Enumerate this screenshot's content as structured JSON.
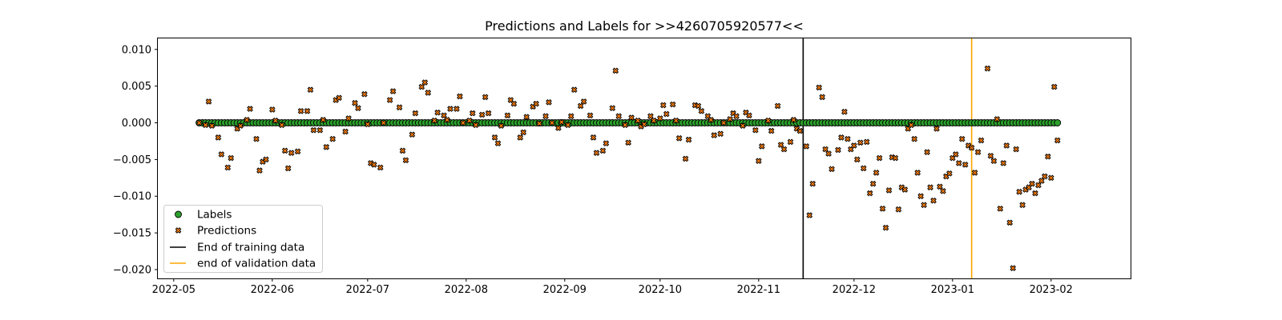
{
  "chart_data": {
    "type": "scatter",
    "title": "Predictions and Labels for >>4260705920577<<",
    "xlabel": "",
    "ylabel": "",
    "x_ticks": [
      "2022-05",
      "2022-06",
      "2022-07",
      "2022-08",
      "2022-09",
      "2022-10",
      "2022-11",
      "2022-12",
      "2023-01",
      "2023-02"
    ],
    "y_ticks": [
      "0.010",
      "0.005",
      "0.000",
      "−0.005",
      "−0.010",
      "−0.015",
      "−0.020"
    ],
    "y_tick_values": [
      0.01,
      0.005,
      0.0,
      -0.005,
      -0.01,
      -0.015,
      -0.02
    ],
    "xlim": [
      "2022-04-26",
      "2023-02-26"
    ],
    "ylim": [
      -0.0212,
      0.0115
    ],
    "grid": false,
    "legend_position": "lower-left",
    "date_range": {
      "start": "2022-05-09",
      "end": "2023-02-03"
    },
    "markers": [
      {
        "name": "End of training data",
        "date": "2022-11-15",
        "color": "#000000"
      },
      {
        "name": "end of validation data",
        "date": "2023-01-07",
        "color": "#ffa500"
      }
    ],
    "series": [
      {
        "name": "Labels",
        "marker": "circle",
        "color": "#2ca02c",
        "values_note": "one point per day from start to end, all at 0.000",
        "value": 0.0
      },
      {
        "name": "Predictions",
        "marker": "x",
        "color": "#ff7f0e",
        "points": [
          [
            "2022-05-09",
            0.0
          ],
          [
            "2022-05-11",
            -0.0003
          ],
          [
            "2022-05-12",
            0.0029
          ],
          [
            "2022-05-13",
            -0.0004
          ],
          [
            "2022-05-15",
            -0.002
          ],
          [
            "2022-05-16",
            -0.0043
          ],
          [
            "2022-05-18",
            -0.0061
          ],
          [
            "2022-05-19",
            -0.0048
          ],
          [
            "2022-05-21",
            -0.0008
          ],
          [
            "2022-05-22",
            -0.0004
          ],
          [
            "2022-05-24",
            0.0004
          ],
          [
            "2022-05-25",
            0.0019
          ],
          [
            "2022-05-27",
            -0.0022
          ],
          [
            "2022-05-28",
            -0.0065
          ],
          [
            "2022-05-29",
            -0.0053
          ],
          [
            "2022-05-30",
            -0.005
          ],
          [
            "2022-06-01",
            0.0018
          ],
          [
            "2022-06-02",
            0.0003
          ],
          [
            "2022-06-04",
            -0.0003
          ],
          [
            "2022-06-05",
            -0.0038
          ],
          [
            "2022-06-06",
            -0.0062
          ],
          [
            "2022-06-07",
            -0.0041
          ],
          [
            "2022-06-09",
            -0.0039
          ],
          [
            "2022-06-10",
            0.0016
          ],
          [
            "2022-06-12",
            0.0016
          ],
          [
            "2022-06-13",
            0.0045
          ],
          [
            "2022-06-14",
            -0.001
          ],
          [
            "2022-06-16",
            -0.001
          ],
          [
            "2022-06-17",
            0.0004
          ],
          [
            "2022-06-18",
            -0.0033
          ],
          [
            "2022-06-20",
            -0.0022
          ],
          [
            "2022-06-21",
            0.0031
          ],
          [
            "2022-06-22",
            0.0034
          ],
          [
            "2022-06-24",
            -0.0012
          ],
          [
            "2022-06-25",
            0.0006
          ],
          [
            "2022-06-27",
            0.0027
          ],
          [
            "2022-06-28",
            0.002
          ],
          [
            "2022-06-30",
            0.0039
          ],
          [
            "2022-07-01",
            -0.0002
          ],
          [
            "2022-07-02",
            -0.0055
          ],
          [
            "2022-07-03",
            -0.0057
          ],
          [
            "2022-07-05",
            -0.0061
          ],
          [
            "2022-07-06",
            0.0
          ],
          [
            "2022-07-08",
            0.0031
          ],
          [
            "2022-07-09",
            0.0043
          ],
          [
            "2022-07-11",
            0.0021
          ],
          [
            "2022-07-12",
            -0.0038
          ],
          [
            "2022-07-13",
            -0.0051
          ],
          [
            "2022-07-15",
            -0.0016
          ],
          [
            "2022-07-16",
            0.0013
          ],
          [
            "2022-07-18",
            0.0049
          ],
          [
            "2022-07-19",
            0.0055
          ],
          [
            "2022-07-20",
            0.0041
          ],
          [
            "2022-07-22",
            0.0003
          ],
          [
            "2022-07-23",
            0.0014
          ],
          [
            "2022-07-25",
            0.001
          ],
          [
            "2022-07-26",
            0.0004
          ],
          [
            "2022-07-27",
            0.0019
          ],
          [
            "2022-07-29",
            0.0019
          ],
          [
            "2022-07-30",
            0.0036
          ],
          [
            "2022-07-31",
            0.0
          ],
          [
            "2022-08-02",
            0.0003
          ],
          [
            "2022-08-03",
            0.0013
          ],
          [
            "2022-08-04",
            -0.0003
          ],
          [
            "2022-08-06",
            0.0011
          ],
          [
            "2022-08-07",
            0.0035
          ],
          [
            "2022-08-08",
            0.0013
          ],
          [
            "2022-08-10",
            -0.002
          ],
          [
            "2022-08-11",
            -0.0028
          ],
          [
            "2022-08-12",
            -0.0004
          ],
          [
            "2022-08-14",
            0.001
          ],
          [
            "2022-08-15",
            0.0031
          ],
          [
            "2022-08-16",
            0.0026
          ],
          [
            "2022-08-18",
            -0.002
          ],
          [
            "2022-08-19",
            -0.0013
          ],
          [
            "2022-08-20",
            0.0008
          ],
          [
            "2022-08-22",
            0.0022
          ],
          [
            "2022-08-23",
            0.0026
          ],
          [
            "2022-08-24",
            -0.0001
          ],
          [
            "2022-08-26",
            0.0009
          ],
          [
            "2022-08-27",
            0.0028
          ],
          [
            "2022-08-28",
            0.0
          ],
          [
            "2022-08-30",
            -0.0007
          ],
          [
            "2022-08-31",
            0.0001
          ],
          [
            "2022-09-02",
            -0.0003
          ],
          [
            "2022-09-03",
            0.0009
          ],
          [
            "2022-09-04",
            0.0045
          ],
          [
            "2022-09-06",
            0.0023
          ],
          [
            "2022-09-07",
            0.0029
          ],
          [
            "2022-09-09",
            0.001
          ],
          [
            "2022-09-10",
            -0.002
          ],
          [
            "2022-09-11",
            -0.0041
          ],
          [
            "2022-09-13",
            -0.0038
          ],
          [
            "2022-09-14",
            -0.0028
          ],
          [
            "2022-09-16",
            0.002
          ],
          [
            "2022-09-17",
            0.0071
          ],
          [
            "2022-09-18",
            0.0009
          ],
          [
            "2022-09-20",
            -0.0003
          ],
          [
            "2022-09-21",
            -0.0027
          ],
          [
            "2022-09-22",
            0.0007
          ],
          [
            "2022-09-24",
            0.0003
          ],
          [
            "2022-09-25",
            -0.0005
          ],
          [
            "2022-09-26",
            -0.0002
          ],
          [
            "2022-09-28",
            0.0009
          ],
          [
            "2022-09-29",
            0.0003
          ],
          [
            "2022-10-01",
            0.0006
          ],
          [
            "2022-10-02",
            0.0024
          ],
          [
            "2022-10-03",
            0.0012
          ],
          [
            "2022-10-05",
            0.0025
          ],
          [
            "2022-10-06",
            0.0003
          ],
          [
            "2022-10-07",
            -0.0021
          ],
          [
            "2022-10-09",
            -0.0049
          ],
          [
            "2022-10-10",
            -0.0023
          ],
          [
            "2022-10-12",
            0.0024
          ],
          [
            "2022-10-13",
            0.0023
          ],
          [
            "2022-10-14",
            0.0016
          ],
          [
            "2022-10-16",
            0.0009
          ],
          [
            "2022-10-17",
            0.0004
          ],
          [
            "2022-10-18",
            -0.0017
          ],
          [
            "2022-10-20",
            -0.0015
          ],
          [
            "2022-10-21",
            0.0
          ],
          [
            "2022-10-23",
            0.0005
          ],
          [
            "2022-10-24",
            0.0013
          ],
          [
            "2022-10-25",
            0.0009
          ],
          [
            "2022-10-27",
            -0.0004
          ],
          [
            "2022-10-28",
            0.0014
          ],
          [
            "2022-10-29",
            0.001
          ],
          [
            "2022-10-31",
            -0.001
          ],
          [
            "2022-11-01",
            -0.0052
          ],
          [
            "2022-11-02",
            -0.0032
          ],
          [
            "2022-11-04",
            0.0003
          ],
          [
            "2022-11-05",
            -0.0011
          ],
          [
            "2022-11-07",
            0.0023
          ],
          [
            "2022-11-08",
            -0.003
          ],
          [
            "2022-11-09",
            -0.0036
          ],
          [
            "2022-11-11",
            -0.0026
          ],
          [
            "2022-11-12",
            0.0004
          ],
          [
            "2022-11-13",
            -0.0008
          ],
          [
            "2022-11-14",
            -0.0011
          ]
        ]
      }
    ]
  }
}
